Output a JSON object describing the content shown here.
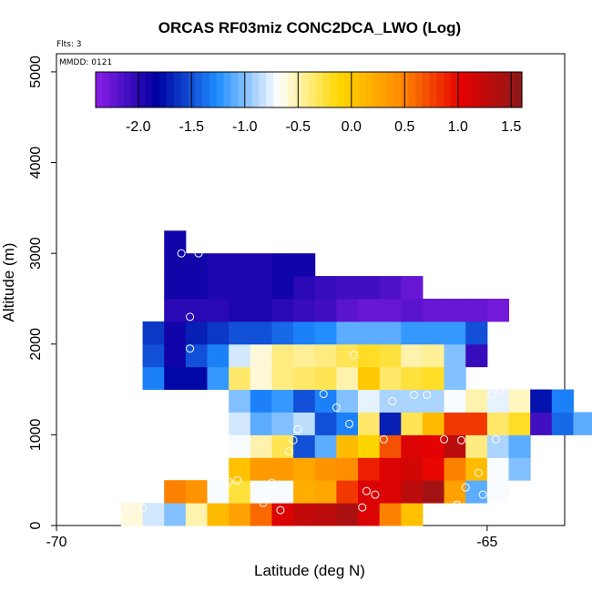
{
  "chart_data": {
    "type": "heatmap",
    "title": "ORCAS RF03miz CONC2DCA_LWO (Log)",
    "xlabel": "Latitude (deg N)",
    "ylabel": "Altitude (m)",
    "xlim": [
      -70,
      -64.1
    ],
    "ylim": [
      0,
      5200
    ],
    "x_ticks": [
      -70,
      -65
    ],
    "x_tick_labels": [
      "-70",
      "-65"
    ],
    "y_ticks": [
      0,
      1000,
      2000,
      3000,
      4000,
      5000
    ],
    "y_tick_labels": [
      "0",
      "1000",
      "2000",
      "3000",
      "4000",
      "5000"
    ],
    "annotations": [
      "Flts: 3",
      "MMDD: 0121"
    ],
    "colorbar": {
      "range": [
        -2.4,
        1.6
      ],
      "ticks": [
        -2.0,
        -1.5,
        -1.0,
        -0.5,
        0.0,
        0.5,
        1.0,
        1.5
      ],
      "tick_labels": [
        "-2.0",
        "-1.5",
        "-1.0",
        "-0.5",
        "0.0",
        "0.5",
        "1.0",
        "1.5"
      ],
      "colors": [
        "#8b1ee6",
        "#0000a0",
        "#1e8cff",
        "#ffffff",
        "#ffd700",
        "#ff8c00",
        "#e60000",
        "#8b1a1a"
      ]
    },
    "cell_width_deg": 0.25,
    "cell_height_m": 250,
    "row_bottoms": [
      0,
      250,
      500,
      750,
      1000,
      1250,
      1500,
      1750,
      2000,
      2250,
      2500,
      2750,
      3000
    ],
    "x_starts": [
      -69.25,
      -68.75,
      -68.0,
      -68.0,
      -68.0,
      -68.0,
      -69.0,
      -69.0,
      -69.0,
      -68.75,
      -68.75,
      -68.75,
      -68.75
    ],
    "rows": [
      [
        -0.6,
        -0.8,
        -1.0,
        -0.5,
        0.1,
        0.3,
        0.6,
        1.1,
        1.25,
        1.3,
        1.4,
        1.1,
        0.5,
        0.05
      ],
      [
        0.5,
        0.4,
        -0.7,
        -0.25,
        -0.7,
        -0.7,
        0.2,
        0.25,
        0.8,
        1.1,
        1.1,
        1.3,
        1.45,
        0.3,
        -1.1,
        -0.7
      ],
      [
        0.05,
        0.35,
        0.35,
        0.25,
        0.4,
        0.45,
        0.9,
        1.1,
        1.15,
        1.0,
        0.5,
        0.1,
        -0.7,
        -1.0
      ],
      [
        -0.7,
        -0.5,
        -0.3,
        -1.5,
        -1.1,
        0.1,
        -0.1,
        0.7,
        1.1,
        1.05,
        1.3,
        -0.4,
        -0.9,
        -1.1
      ],
      [
        -0.8,
        -1.1,
        -1.0,
        -0.85,
        -1.5,
        -1.3,
        -0.35,
        -1.7,
        -0.3,
        0.1,
        0.8,
        0.8,
        -0.35,
        -0.2,
        -2.1,
        -1.4,
        -1.1
      ],
      [
        -1.0,
        -1.3,
        -1.2,
        -1.5,
        -1.3,
        -1.0,
        -0.75,
        -0.9,
        -0.9,
        -0.9,
        -0.7,
        -0.5,
        -0.75,
        -0.55,
        -1.75,
        -1.3
      ],
      [
        -1.3,
        -1.8,
        -1.8,
        -1.2,
        -0.35,
        -0.6,
        -0.4,
        -0.35,
        -0.3,
        -0.5,
        0.0,
        -0.35,
        -0.25,
        -0.2,
        -1.0
      ],
      [
        -1.5,
        -1.9,
        -1.5,
        -1.3,
        -0.8,
        -0.6,
        -0.4,
        -0.45,
        -0.4,
        -0.3,
        -0.2,
        -0.25,
        -0.5,
        -0.45,
        -1.0,
        -2.05
      ],
      [
        -1.6,
        -1.9,
        -1.7,
        -1.6,
        -1.5,
        -1.5,
        -1.4,
        -1.3,
        -1.25,
        -1.1,
        -1.1,
        -1.1,
        -1.2,
        -1.2,
        -1.2,
        -1.5
      ],
      [
        -2.0,
        -2.0,
        -2.0,
        -1.95,
        -1.95,
        -2.0,
        -2.05,
        -2.1,
        -2.2,
        -2.25,
        -2.25,
        -2.2,
        -2.25,
        -2.25,
        -2.25,
        -2.3
      ],
      [
        -1.9,
        -1.9,
        -1.95,
        -1.95,
        -1.95,
        -1.9,
        -2.0,
        -2.05,
        -2.1,
        -2.1,
        -2.15,
        -2.25
      ],
      [
        -1.9,
        -1.9,
        -1.95,
        -1.95,
        -1.95,
        -1.9,
        -1.9
      ],
      [
        -1.9
      ]
    ],
    "points": [
      [
        -69.15,
        160
      ],
      [
        -69.0,
        190
      ],
      [
        -69.15,
        310
      ],
      [
        -68.95,
        500
      ],
      [
        -68.75,
        1030
      ],
      [
        -69.1,
        950
      ],
      [
        -68.85,
        950
      ],
      [
        -68.35,
        1440
      ],
      [
        -68.2,
        1420
      ],
      [
        -68.6,
        970
      ],
      [
        -68.1,
        500
      ],
      [
        -68.0,
        480
      ],
      [
        -67.9,
        500
      ],
      [
        -67.6,
        250
      ],
      [
        -67.4,
        170
      ],
      [
        -67.5,
        470
      ],
      [
        -67.25,
        940
      ],
      [
        -67.3,
        820
      ],
      [
        -67.2,
        1060
      ],
      [
        -66.9,
        1450
      ],
      [
        -66.75,
        1300
      ],
      [
        -66.6,
        1120
      ],
      [
        -66.4,
        380
      ],
      [
        -66.3,
        340
      ],
      [
        -66.2,
        950
      ],
      [
        -66.1,
        1370
      ],
      [
        -65.85,
        1440
      ],
      [
        -65.7,
        1440
      ],
      [
        -65.5,
        950
      ],
      [
        -65.3,
        940
      ],
      [
        -65.25,
        420
      ],
      [
        -65.1,
        580
      ],
      [
        -65.05,
        340
      ],
      [
        -64.9,
        230
      ],
      [
        -64.9,
        950
      ],
      [
        -65.35,
        230
      ],
      [
        -64.95,
        1440
      ],
      [
        -64.85,
        1490
      ],
      [
        -64.6,
        380
      ],
      [
        -64.4,
        2150
      ],
      [
        -68.45,
        1950
      ],
      [
        -68.45,
        2300
      ],
      [
        -68.35,
        3000
      ],
      [
        -68.55,
        3000
      ],
      [
        -66.45,
        200
      ],
      [
        -66.55,
        1880
      ]
    ]
  }
}
